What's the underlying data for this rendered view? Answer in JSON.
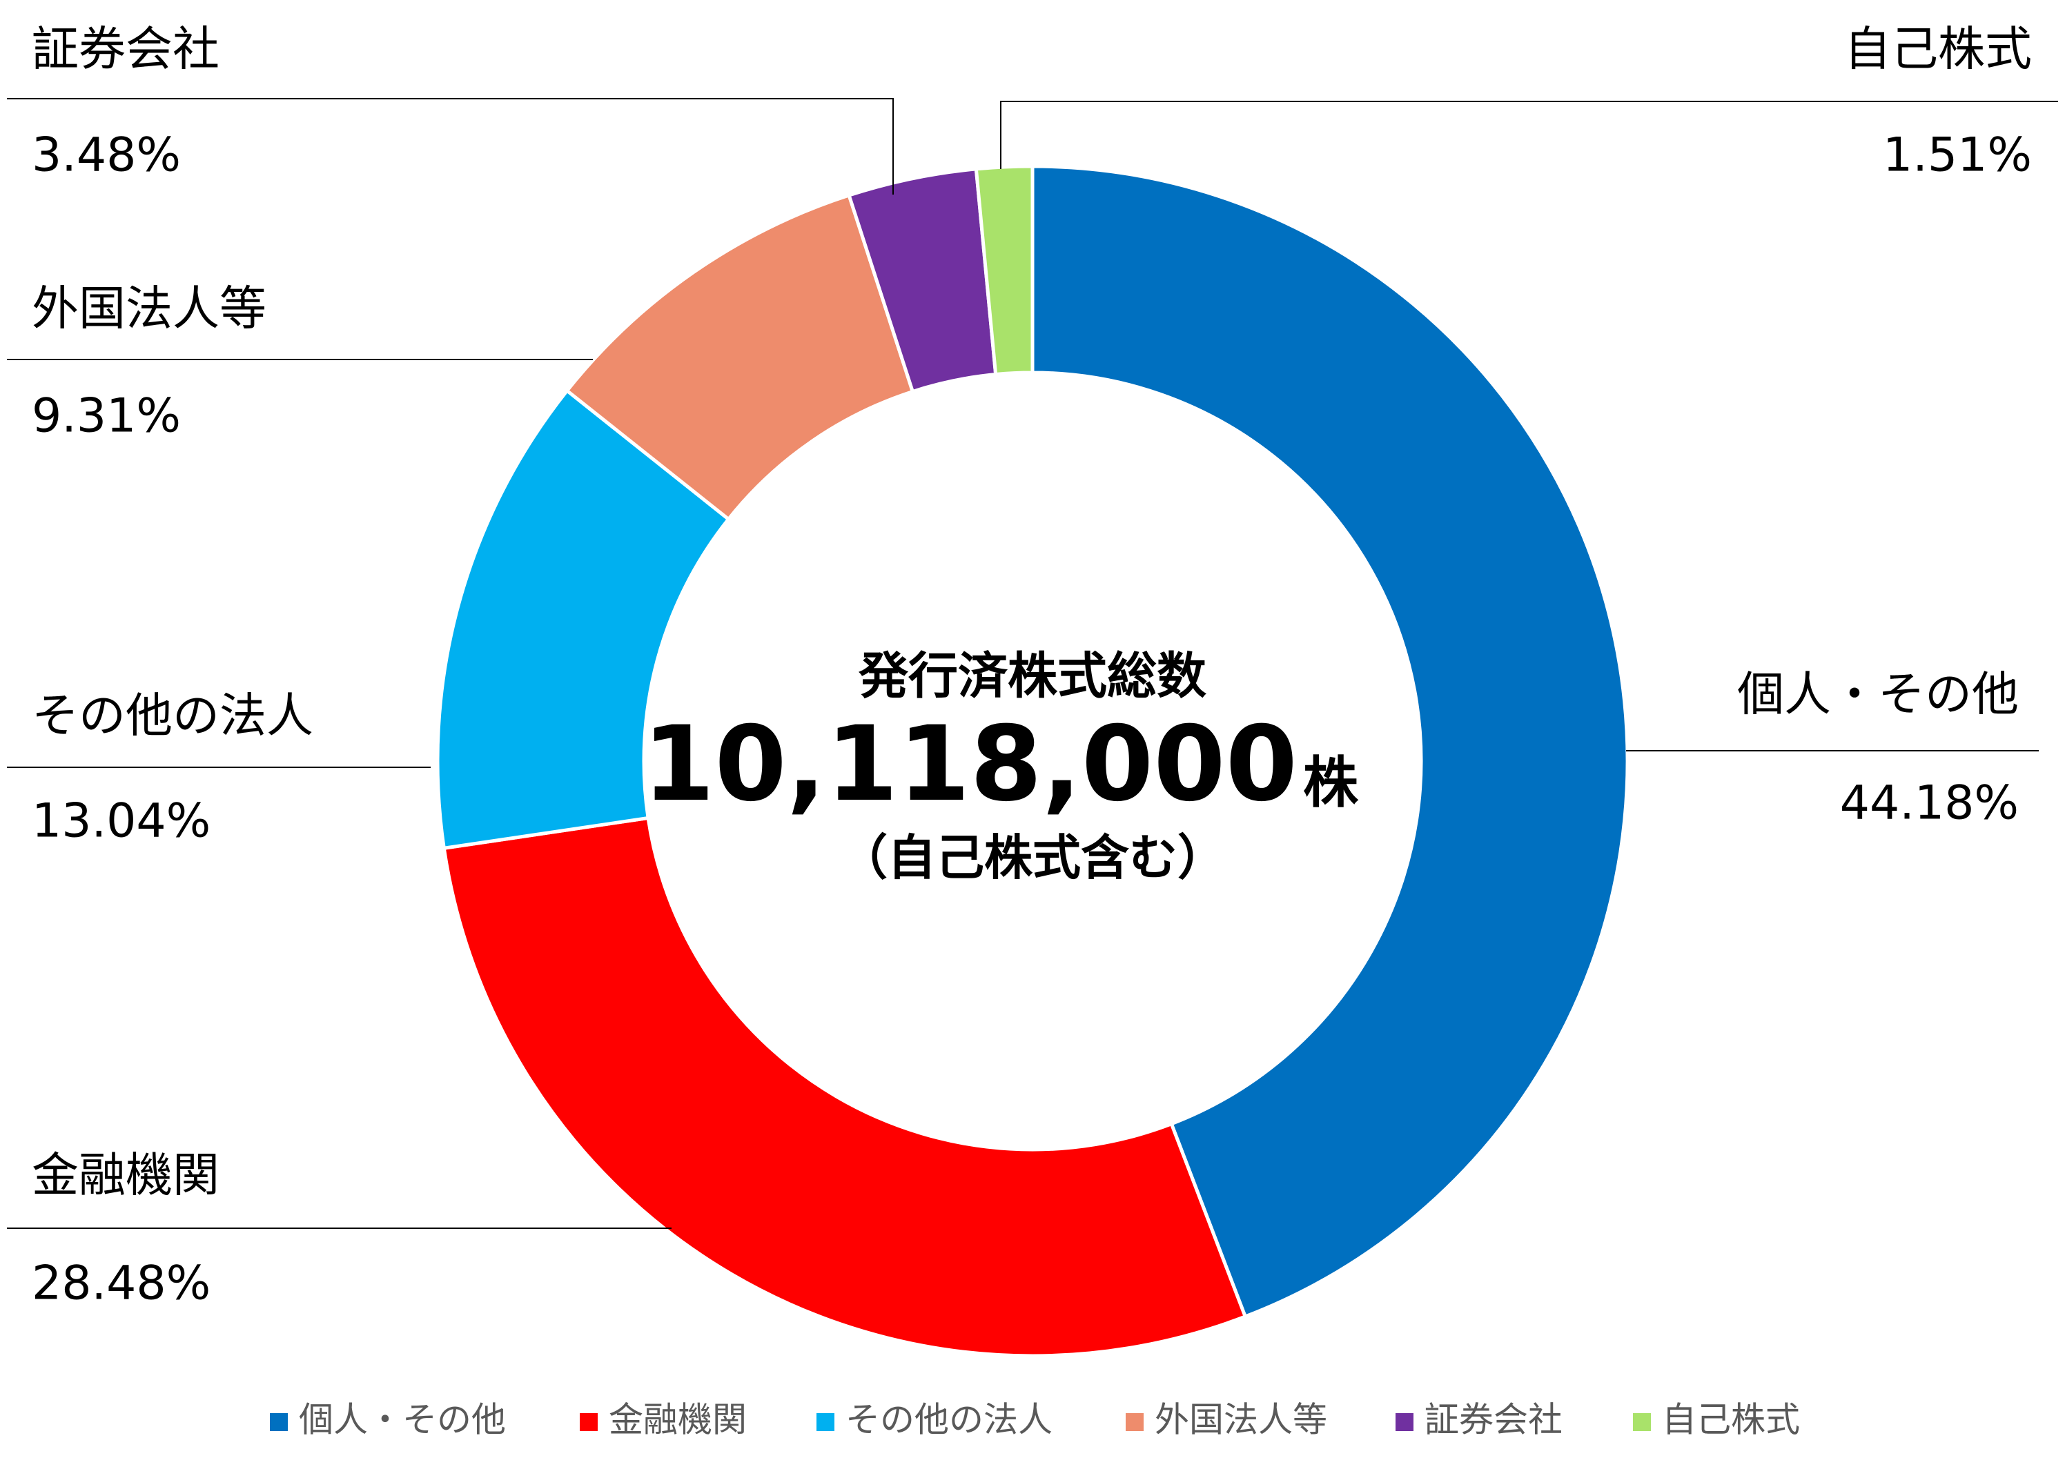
{
  "chart_data": {
    "type": "donut",
    "center_title": "発行済株式総数",
    "center_total": "10,118,000",
    "center_unit": "株",
    "center_note": "（自己株式含む）",
    "categories": [
      "個人・その他",
      "金融機関",
      "その他の法人",
      "外国法人等",
      "証券会社",
      "自己株式"
    ],
    "values": [
      44.18,
      28.48,
      13.04,
      9.31,
      3.48,
      1.51
    ],
    "value_labels": [
      "44.18%",
      "28.48%",
      "13.04%",
      "9.31%",
      "3.48%",
      "1.51%"
    ],
    "colors": [
      "#0070c0",
      "#ff0000",
      "#00b0f0",
      "#ee8c6c",
      "#7030a0",
      "#a9e26a"
    ],
    "legend": "bottom"
  }
}
